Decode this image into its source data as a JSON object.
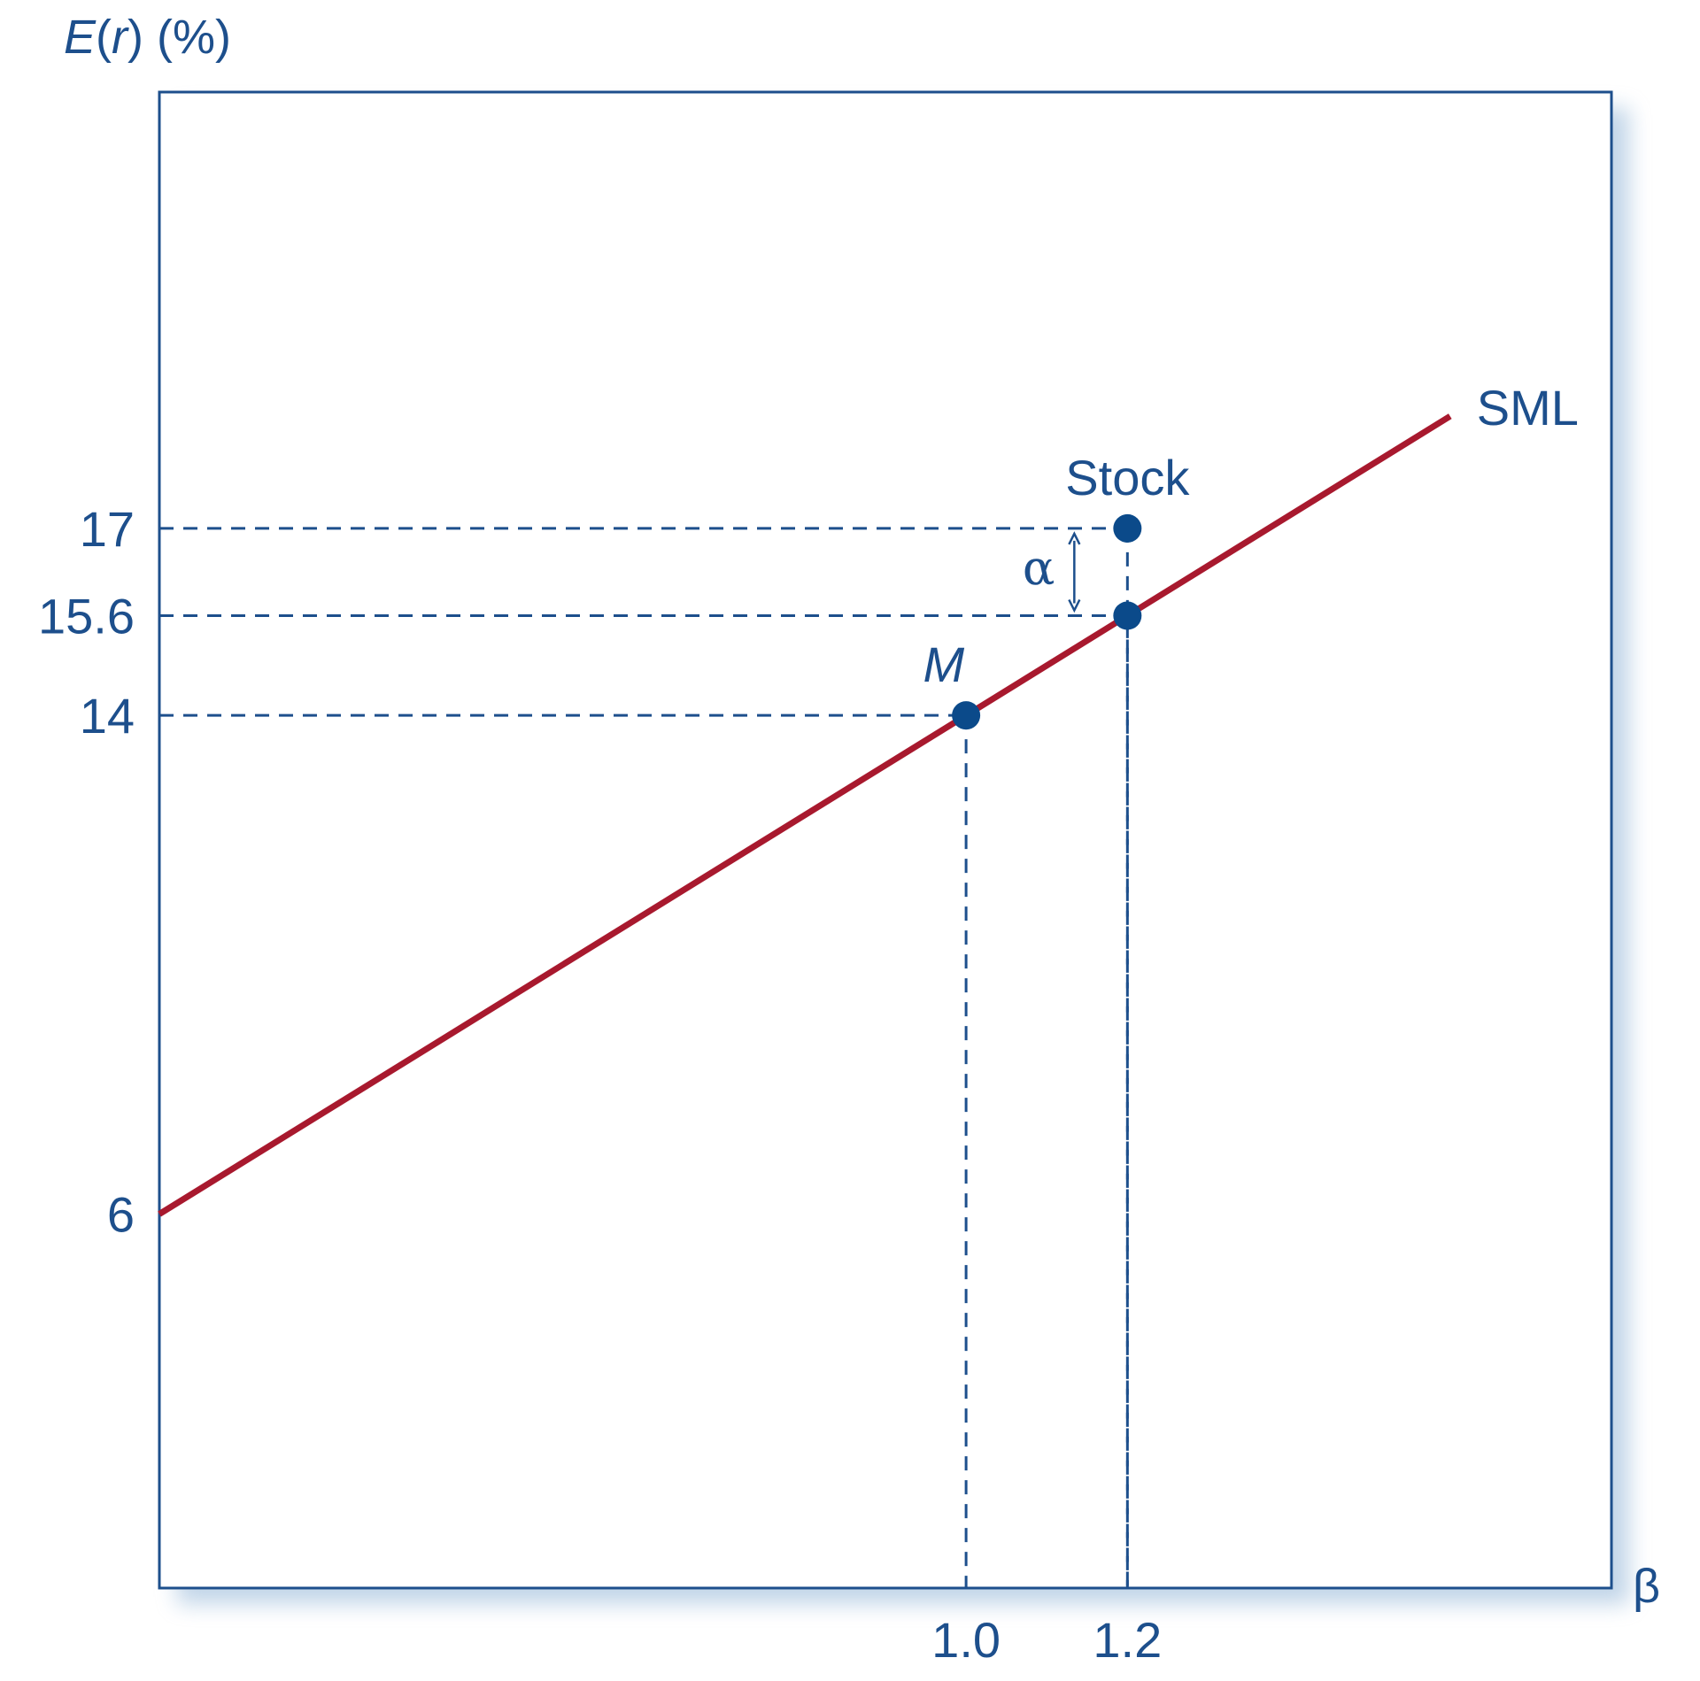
{
  "chart_data": {
    "type": "line",
    "ylabel": "E(r) (%)",
    "ylabel_parts": {
      "e": "E",
      "open": "(",
      "r": "r",
      "close_pct": ") (%)"
    },
    "xlabel": "β",
    "xlim": [
      0,
      1.8
    ],
    "ylim": [
      0,
      24
    ],
    "x_ticks": [
      "1.0",
      "1.2"
    ],
    "x_tick_values": [
      1.0,
      1.2
    ],
    "y_ticks": [
      "6",
      "14",
      "15.6",
      "17"
    ],
    "y_tick_values": [
      6,
      14,
      15.6,
      17
    ],
    "series": [
      {
        "name": "SML",
        "x": [
          0,
          1.6
        ],
        "y": [
          6,
          18.8
        ],
        "color": "#a8192e"
      }
    ],
    "points": [
      {
        "label": "M",
        "x": 1.0,
        "y": 14
      },
      {
        "label": "",
        "x": 1.2,
        "y": 15.6
      },
      {
        "label": "Stock",
        "x": 1.2,
        "y": 17
      }
    ],
    "annotations": [
      {
        "text": "α",
        "x": 1.2,
        "y_from": 15.6,
        "y_to": 17
      }
    ],
    "grid": false,
    "colors": {
      "axis": "#1d4f8c",
      "sml": "#a8192e",
      "point": "#0b4a8a"
    }
  }
}
